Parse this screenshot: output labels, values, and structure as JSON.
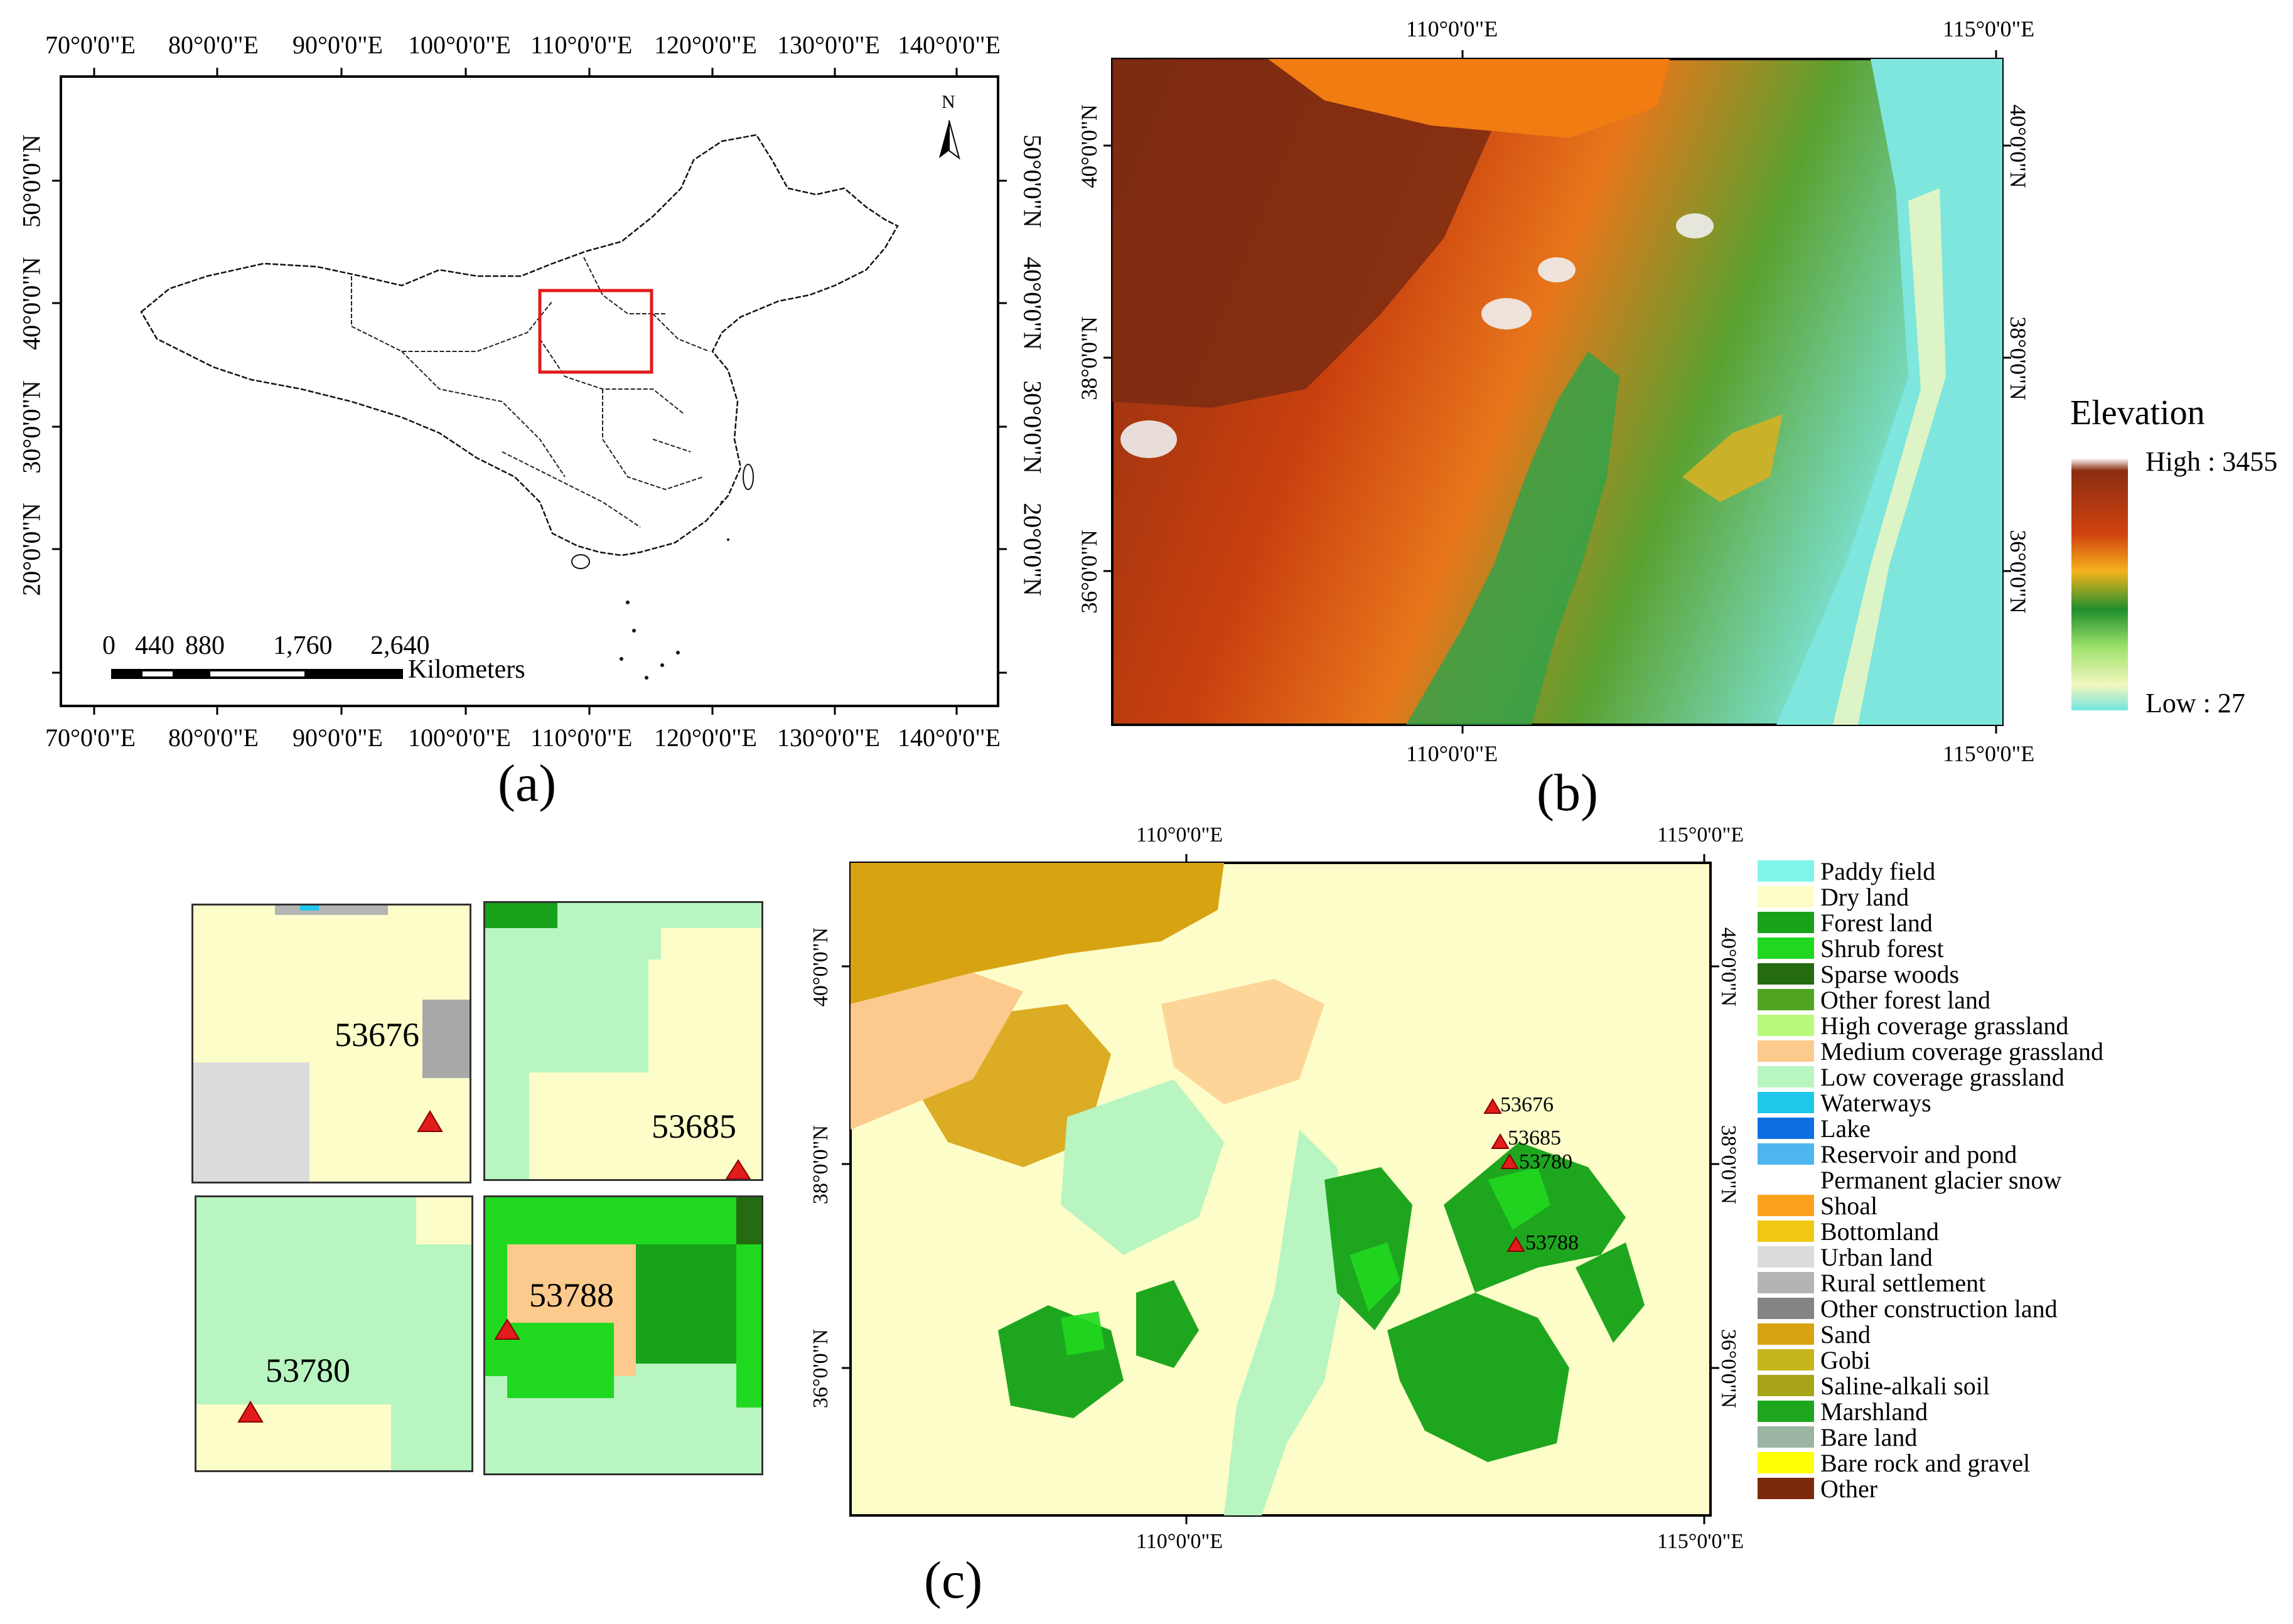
{
  "panel_a": {
    "label": "(a)",
    "lon_ticks": [
      "70°0'0\"E",
      "80°0'0\"E",
      "90°0'0\"E",
      "100°0'0\"E",
      "110°0'0\"E",
      "120°0'0\"E",
      "130°0'0\"E",
      "140°0'0\"E"
    ],
    "lat_ticks": [
      "50°0'0\"N",
      "40°0'0\"N",
      "30°0'0\"N",
      "20°0'0\"N"
    ],
    "north": "N",
    "scale_numbers": [
      "0",
      "440",
      "880",
      "1,760",
      "2,640"
    ],
    "scale_unit": "Kilometers"
  },
  "panel_b": {
    "label": "(b)",
    "lon_ticks": [
      "110°0'0\"E",
      "115°0'0\"E"
    ],
    "lat_ticks": [
      "40°0'0\"N",
      "38°0'0\"N",
      "36°0'0\"N"
    ],
    "legend_title": "Elevation",
    "legend_high": "High : 3455",
    "legend_low": "Low : 27"
  },
  "panel_c": {
    "label": "(c)",
    "lon_ticks": [
      "110°0'0\"E",
      "115°0'0\"E"
    ],
    "lat_ticks": [
      "40°0'0\"N",
      "38°0'0\"N",
      "36°0'0\"N"
    ],
    "stations": [
      "53676",
      "53685",
      "53780",
      "53788"
    ],
    "insets": [
      "53676",
      "53685",
      "53780",
      "53788"
    ],
    "legend": [
      {
        "label": "Paddy field",
        "color": "#7ff5ea"
      },
      {
        "label": "Dry land",
        "color": "#fcfdc8"
      },
      {
        "label": "Forest land",
        "color": "#17a21a"
      },
      {
        "label": "Shrub forest",
        "color": "#1fd81f"
      },
      {
        "label": "Sparse woods",
        "color": "#246b11"
      },
      {
        "label": "Other forest land",
        "color": "#4fa522"
      },
      {
        "label": "High coverage grassland",
        "color": "#b9f97c"
      },
      {
        "label": "Medium coverage grassland",
        "color": "#fcca8c"
      },
      {
        "label": "Low coverage grassland",
        "color": "#b8f5c1"
      },
      {
        "label": "Waterways",
        "color": "#1fc8ea"
      },
      {
        "label": "Lake",
        "color": "#0c6fe2"
      },
      {
        "label": "Reservoir and pond",
        "color": "#4fb5f0"
      },
      {
        "label": "Permanent glacier snow",
        "color": "#ffffff"
      },
      {
        "label": "Shoal",
        "color": "#fca11e"
      },
      {
        "label": "Bottomland",
        "color": "#f0c814"
      },
      {
        "label": "Urban land",
        "color": "#dcdcdc"
      },
      {
        "label": "Rural settlement",
        "color": "#b4b4b4"
      },
      {
        "label": "Other construction land",
        "color": "#848484"
      },
      {
        "label": "Sand",
        "color": "#d8a312"
      },
      {
        "label": "Gobi",
        "color": "#c6b51c"
      },
      {
        "label": "Saline-alkali soil",
        "color": "#a8a51a"
      },
      {
        "label": "Marshland",
        "color": "#1ea61f"
      },
      {
        "label": "Bare land",
        "color": "#9bb5a2"
      },
      {
        "label": "Bare rock and gravel",
        "color": "#ffff05"
      },
      {
        "label": "Other",
        "color": "#7a2a0a"
      }
    ]
  }
}
